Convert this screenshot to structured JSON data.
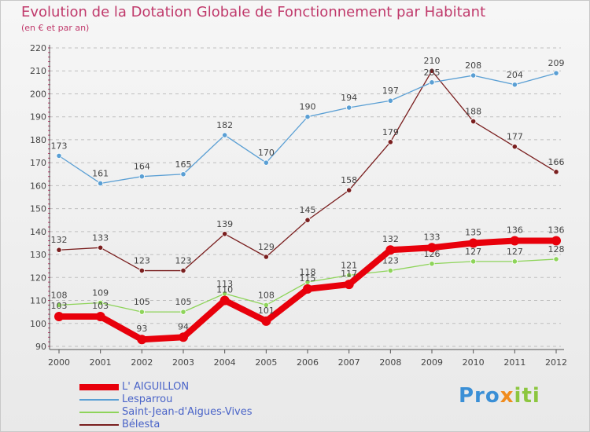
{
  "title": "Evolution de la Dotation Globale de Fonctionnement par Habitant",
  "subtitle": "(en € et par an)",
  "logo": {
    "text": "Proxiti",
    "colors": [
      "#3a8fd6",
      "#f08c1e",
      "#8cc63f"
    ]
  },
  "chart_data": {
    "type": "line",
    "title": "Evolution de la Dotation Globale de Fonctionnement par Habitant",
    "subtitle": "(en € et par an)",
    "x": [
      "2000",
      "2001",
      "2002",
      "2003",
      "2004",
      "2005",
      "2006",
      "2007",
      "2008",
      "2009",
      "2010",
      "2011",
      "2012"
    ],
    "ylim": [
      90,
      220
    ],
    "yticks": [
      90,
      100,
      110,
      120,
      130,
      140,
      150,
      160,
      170,
      180,
      190,
      200,
      210,
      220
    ],
    "grid": "horizontal dashed",
    "legend_position": "bottom-left",
    "series": [
      {
        "name": "L' AIGUILLON",
        "color": "#e8000b",
        "values": [
          103,
          103,
          93,
          94,
          110,
          101,
          115,
          117,
          132,
          133,
          135,
          136,
          136
        ]
      },
      {
        "name": "Lesparrou",
        "color": "#5a9fd4",
        "values": [
          173,
          161,
          164,
          165,
          182,
          170,
          190,
          194,
          197,
          205,
          208,
          204,
          209
        ]
      },
      {
        "name": "Saint-Jean-d'Aigues-Vives",
        "color": "#8ed45a",
        "values": [
          108,
          109,
          105,
          105,
          113,
          108,
          118,
          121,
          123,
          126,
          127,
          127,
          128
        ]
      },
      {
        "name": "Bélesta",
        "color": "#7a1f1f",
        "values": [
          132,
          133,
          123,
          123,
          139,
          129,
          145,
          158,
          179,
          210,
          188,
          177,
          166
        ]
      }
    ]
  }
}
